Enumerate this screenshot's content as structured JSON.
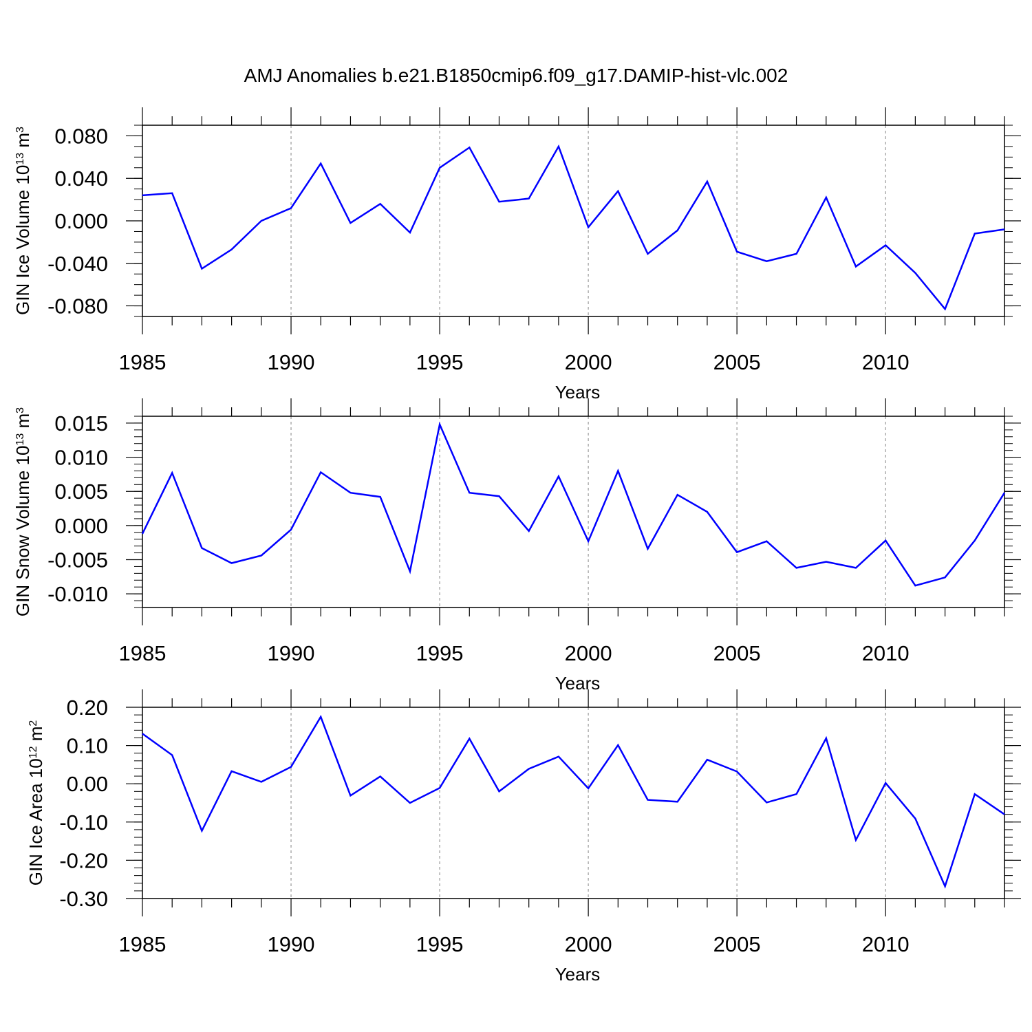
{
  "title": "AMJ Anomalies b.e21.B1850cmip6.f09_g17.DAMIP-hist-vlc.002",
  "colors": {
    "line": "#0000ff",
    "axis": "#000000",
    "grid": "#999999",
    "background": "#ffffff"
  },
  "chart_data": [
    {
      "type": "line",
      "ylabel": "GIN Ice Volume 10",
      "ylabel_exp": "13",
      "ylabel_unit": " m",
      "ylabel_unit_exp": "3",
      "xlabel": "Years",
      "xlim": [
        1985,
        2014
      ],
      "ylim": [
        -0.09,
        0.09
      ],
      "xticks": [
        1985,
        1990,
        1995,
        2000,
        2005,
        2010
      ],
      "xtick_labels": [
        "1985",
        "1990",
        "1995",
        "2000",
        "2005",
        "2010"
      ],
      "yticks": [
        -0.08,
        -0.04,
        0.0,
        0.04,
        0.08
      ],
      "ytick_labels": [
        "-0.080",
        "-0.040",
        "0.000",
        "0.040",
        "0.080"
      ],
      "y_minor_step": 0.01,
      "grid_x": true,
      "series": [
        {
          "name": "GIN Ice Volume",
          "x": [
            1985,
            1986,
            1987,
            1988,
            1989,
            1990,
            1991,
            1992,
            1993,
            1994,
            1995,
            1996,
            1997,
            1998,
            1999,
            2000,
            2001,
            2002,
            2003,
            2004,
            2005,
            2006,
            2007,
            2008,
            2009,
            2010,
            2011,
            2012,
            2013,
            2014
          ],
          "values": [
            0.024,
            0.026,
            -0.045,
            -0.027,
            0.0,
            0.012,
            0.054,
            -0.002,
            0.016,
            -0.011,
            0.05,
            0.069,
            0.018,
            0.021,
            0.07,
            -0.006,
            0.028,
            -0.031,
            -0.009,
            0.037,
            -0.029,
            -0.038,
            -0.031,
            0.022,
            -0.043,
            -0.023,
            -0.049,
            -0.083,
            -0.012,
            -0.008
          ]
        }
      ]
    },
    {
      "type": "line",
      "ylabel": "GIN Snow Volume 10",
      "ylabel_exp": "13",
      "ylabel_unit": " m",
      "ylabel_unit_exp": "3",
      "xlabel": "Years",
      "xlim": [
        1985,
        2014
      ],
      "ylim": [
        -0.012,
        0.016
      ],
      "xticks": [
        1985,
        1990,
        1995,
        2000,
        2005,
        2010
      ],
      "xtick_labels": [
        "1985",
        "1990",
        "1995",
        "2000",
        "2005",
        "2010"
      ],
      "yticks": [
        -0.01,
        -0.005,
        0.0,
        0.005,
        0.01,
        0.015
      ],
      "ytick_labels": [
        "-0.010",
        "-0.005",
        "0.000",
        "0.005",
        "0.010",
        "0.015"
      ],
      "y_minor_step": 0.001,
      "grid_x": true,
      "series": [
        {
          "name": "GIN Snow Volume",
          "x": [
            1985,
            1986,
            1987,
            1988,
            1989,
            1990,
            1991,
            1992,
            1993,
            1994,
            1995,
            1996,
            1997,
            1998,
            1999,
            2000,
            2001,
            2002,
            2003,
            2004,
            2005,
            2006,
            2007,
            2008,
            2009,
            2010,
            2011,
            2012,
            2013,
            2014
          ],
          "values": [
            -0.0012,
            0.0077,
            -0.0033,
            -0.0055,
            -0.0044,
            -0.0006,
            0.0078,
            0.0048,
            0.0042,
            -0.0067,
            0.0148,
            0.0048,
            0.0043,
            -0.0008,
            0.0072,
            -0.0023,
            0.008,
            -0.0034,
            0.0045,
            0.002,
            -0.0039,
            -0.0023,
            -0.0062,
            -0.0053,
            -0.0062,
            -0.0022,
            -0.0088,
            -0.0076,
            -0.0022,
            0.0048
          ]
        }
      ]
    },
    {
      "type": "line",
      "ylabel": "GIN Ice Area 10",
      "ylabel_exp": "12",
      "ylabel_unit": " m",
      "ylabel_unit_exp": "2",
      "xlabel": "Years",
      "xlim": [
        1985,
        2014
      ],
      "ylim": [
        -0.3,
        0.2
      ],
      "xticks": [
        1985,
        1990,
        1995,
        2000,
        2005,
        2010
      ],
      "xtick_labels": [
        "1985",
        "1990",
        "1995",
        "2000",
        "2005",
        "2010"
      ],
      "yticks": [
        -0.3,
        -0.2,
        -0.1,
        0.0,
        0.1,
        0.2
      ],
      "ytick_labels": [
        "-0.30",
        "-0.20",
        "-0.10",
        "0.00",
        "0.10",
        "0.20"
      ],
      "y_minor_step": 0.02,
      "grid_x": true,
      "series": [
        {
          "name": "GIN Ice Area",
          "x": [
            1985,
            1986,
            1987,
            1988,
            1989,
            1990,
            1991,
            1992,
            1993,
            1994,
            1995,
            1996,
            1997,
            1998,
            1999,
            2000,
            2001,
            2002,
            2003,
            2004,
            2005,
            2006,
            2007,
            2008,
            2009,
            2010,
            2011,
            2012,
            2013,
            2014
          ],
          "values": [
            0.131,
            0.075,
            -0.123,
            0.033,
            0.005,
            0.044,
            0.175,
            -0.031,
            0.019,
            -0.05,
            -0.011,
            0.118,
            -0.02,
            0.039,
            0.071,
            -0.012,
            0.101,
            -0.042,
            -0.047,
            0.063,
            0.032,
            -0.049,
            -0.027,
            0.119,
            -0.147,
            0.002,
            -0.091,
            -0.268,
            -0.027,
            -0.08
          ]
        }
      ]
    }
  ]
}
